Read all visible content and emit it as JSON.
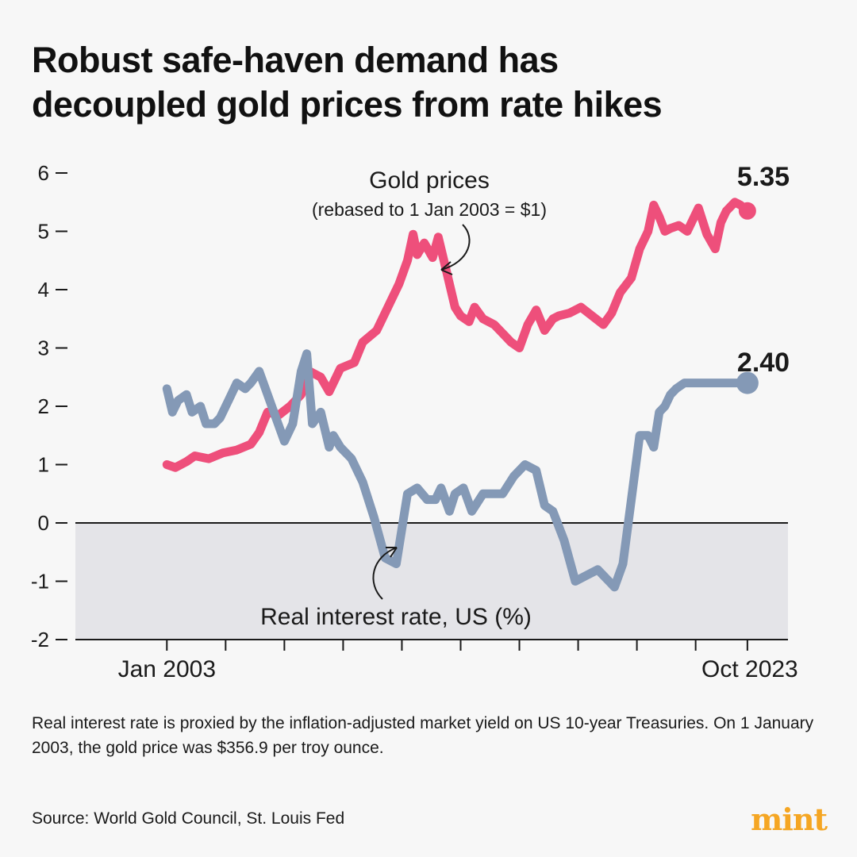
{
  "title_lines": [
    "Robust safe-haven demand has",
    "decoupled gold prices from rate hikes"
  ],
  "chart_data": {
    "type": "line",
    "title": "Robust safe-haven demand has decoupled gold prices from rate hikes",
    "ylim": [
      -2,
      6
    ],
    "y_ticks": [
      "6",
      "5",
      "4",
      "3",
      "2",
      "1",
      "0",
      "-1",
      "-2"
    ],
    "x_range": [
      2003.0,
      2023.75
    ],
    "x_labels": [
      "Jan 2003",
      "Oct 2023"
    ],
    "series": [
      {
        "name": "Gold prices",
        "annotation_main": "Gold prices",
        "annotation_sub": "(rebased to 1 Jan 2003 = $1)",
        "color": "#ee4f7b",
        "end_label": "5.35",
        "x": [
          2003.0,
          2003.3,
          2003.7,
          2004.0,
          2004.5,
          2005.0,
          2005.5,
          2006.0,
          2006.3,
          2006.6,
          2007.0,
          2007.4,
          2007.8,
          2008.1,
          2008.5,
          2008.8,
          2009.2,
          2009.7,
          2010.0,
          2010.5,
          2010.9,
          2011.3,
          2011.6,
          2011.8,
          2011.95,
          2012.2,
          2012.5,
          2012.7,
          2013.0,
          2013.3,
          2013.5,
          2013.8,
          2014.0,
          2014.3,
          2014.7,
          2015.0,
          2015.3,
          2015.6,
          2015.9,
          2016.2,
          2016.5,
          2016.8,
          2017.0,
          2017.4,
          2017.8,
          2018.2,
          2018.6,
          2018.9,
          2019.2,
          2019.6,
          2019.9,
          2020.2,
          2020.4,
          2020.6,
          2020.8,
          2021.0,
          2021.3,
          2021.6,
          2022.0,
          2022.3,
          2022.6,
          2022.8,
          2023.0,
          2023.3,
          2023.5,
          2023.75
        ],
        "y": [
          1.0,
          0.95,
          1.05,
          1.15,
          1.1,
          1.2,
          1.25,
          1.35,
          1.55,
          1.9,
          1.85,
          2.0,
          2.2,
          2.6,
          2.5,
          2.25,
          2.65,
          2.75,
          3.1,
          3.3,
          3.7,
          4.1,
          4.5,
          4.95,
          4.6,
          4.8,
          4.55,
          4.9,
          4.3,
          3.7,
          3.55,
          3.45,
          3.7,
          3.5,
          3.4,
          3.25,
          3.1,
          3.0,
          3.4,
          3.65,
          3.3,
          3.5,
          3.55,
          3.6,
          3.7,
          3.55,
          3.4,
          3.6,
          3.95,
          4.2,
          4.7,
          5.0,
          5.45,
          5.25,
          5.0,
          5.05,
          5.1,
          5.0,
          5.4,
          4.95,
          4.7,
          5.15,
          5.35,
          5.5,
          5.45,
          5.35
        ]
      },
      {
        "name": "Real interest rate, US (%)",
        "annotation_main": "Real interest rate, US (%)",
        "color": "#8499b6",
        "end_label": "2.40",
        "x": [
          2003.0,
          2003.2,
          2003.4,
          2003.7,
          2003.9,
          2004.2,
          2004.4,
          2004.7,
          2004.9,
          2005.2,
          2005.5,
          2005.8,
          2006.0,
          2006.3,
          2006.6,
          2006.9,
          2007.2,
          2007.5,
          2007.8,
          2008.0,
          2008.2,
          2008.5,
          2008.8,
          2008.95,
          2009.2,
          2009.6,
          2010.0,
          2010.4,
          2010.8,
          2011.2,
          2011.6,
          2011.95,
          2012.3,
          2012.6,
          2012.8,
          2013.1,
          2013.3,
          2013.6,
          2013.9,
          2014.3,
          2014.6,
          2015.0,
          2015.4,
          2015.8,
          2016.2,
          2016.5,
          2016.8,
          2017.2,
          2017.6,
          2018.0,
          2018.4,
          2018.8,
          2019.0,
          2019.3,
          2019.6,
          2019.9,
          2020.2,
          2020.4,
          2020.6,
          2020.8,
          2021.0,
          2021.2,
          2021.5,
          2021.8,
          2022.0,
          2022.2,
          2022.4,
          2022.6,
          2022.8,
          2023.0,
          2023.3,
          2023.5,
          2023.75
        ],
        "y": [
          2.3,
          1.9,
          2.1,
          2.2,
          1.9,
          2.0,
          1.7,
          1.7,
          1.8,
          2.1,
          2.4,
          2.3,
          2.4,
          2.6,
          2.2,
          1.8,
          1.4,
          1.7,
          2.6,
          2.9,
          1.7,
          1.9,
          1.3,
          1.5,
          1.3,
          1.1,
          0.7,
          0.1,
          -0.6,
          -0.7,
          0.5,
          0.6,
          0.4,
          0.4,
          0.6,
          0.2,
          0.5,
          0.6,
          0.2,
          0.5,
          0.5,
          0.5,
          0.8,
          1.0,
          0.9,
          0.3,
          0.2,
          -0.3,
          -1.0,
          -0.9,
          -0.8,
          -1.0,
          -1.1,
          -0.7,
          0.4,
          1.5,
          1.5,
          1.3,
          1.9,
          2.0,
          2.2,
          2.3,
          2.4,
          2.4,
          2.4,
          2.4,
          2.4,
          2.4,
          2.4,
          2.4,
          2.4,
          2.4,
          2.4
        ]
      }
    ],
    "negative_region_shaded": true
  },
  "note": "Real interest rate is proxied by the inflation-adjusted market yield on US 10-year Treasuries. On 1 January 2003, the gold price was $356.9 per troy ounce.",
  "source": "Source: World Gold Council, St. Louis Fed",
  "logo": "mint",
  "colors": {
    "gold": "#ee4f7b",
    "rate": "#8499b6",
    "shade": "#e4e4e8",
    "logo": "#f5a623"
  }
}
